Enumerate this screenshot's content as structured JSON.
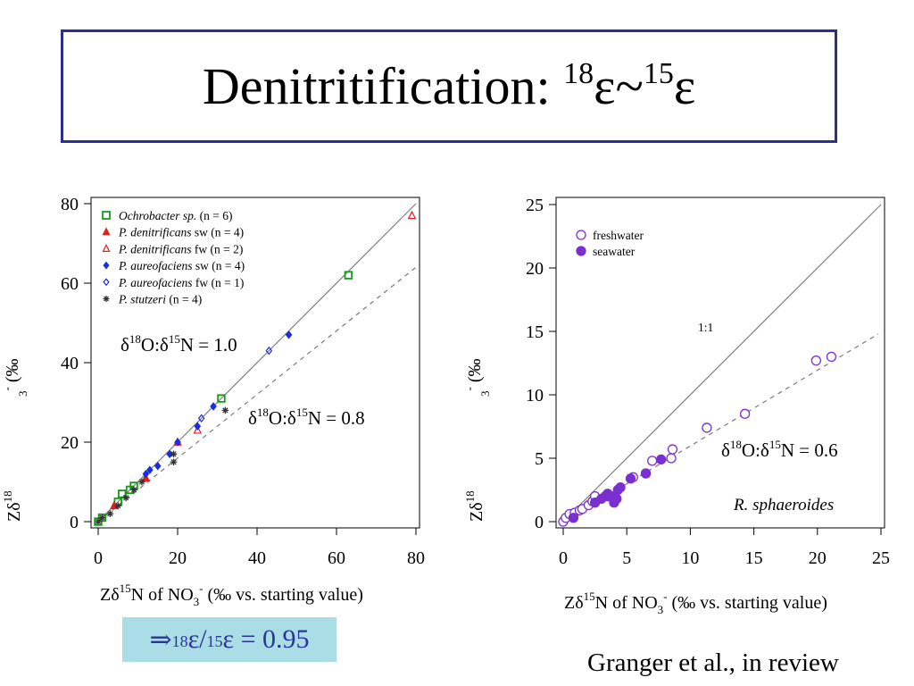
{
  "slide": {
    "title_prefix": "Denitritification: ",
    "title_sup1": "18",
    "title_eps1": "ε~",
    "title_sup2": "15",
    "title_eps2": "ε",
    "result_arrow": "⇒ ",
    "result_sup1": "18",
    "result_mid": "ε/",
    "result_sup2": "15",
    "result_end": "ε = 0.95",
    "credit": "Granger et al., in review"
  },
  "chart_data": [
    {
      "type": "scatter",
      "xlim": [
        0,
        80
      ],
      "ylim": [
        0,
        80
      ],
      "xticks": [
        0,
        20,
        40,
        60,
        80
      ],
      "yticks": [
        0,
        20,
        40,
        60,
        80
      ],
      "xlabel": {
        "a": "Zδ",
        "sup": "15",
        "b": "N of NO",
        "sub": "3",
        "sup2": "-",
        "c": " (‰ vs. starting value)"
      },
      "ylabel_fragment": "Zδ¹⁸ ... ₃⁻ (‰",
      "legend_position": "top-left",
      "lines": [
        {
          "label": "1:1",
          "slope": 1.0,
          "style": "solid"
        },
        {
          "label": "0.8",
          "slope": 0.8,
          "style": "dashed"
        }
      ],
      "annotations": [
        {
          "text": "δ18O:δ15N = 1.0"
        },
        {
          "text": "δ18O:δ15N = 0.8"
        }
      ],
      "series": [
        {
          "name": "Ochrobacter sp.",
          "legend_suffix": "(n = 6)",
          "marker": "open-square",
          "color": "#1a9a1a",
          "points": [
            [
              0,
              0
            ],
            [
              1,
              1
            ],
            [
              5,
              5
            ],
            [
              6,
              7
            ],
            [
              8,
              8
            ],
            [
              9,
              9
            ],
            [
              31,
              31
            ],
            [
              63,
              62
            ]
          ]
        },
        {
          "name": "P. denitrificans",
          "legend_suffix": "sw (n = 4)",
          "marker": "filled-triangle",
          "color": "#e02020",
          "points": [
            [
              4,
              4
            ],
            [
              12,
              11
            ],
            [
              20,
              20
            ]
          ]
        },
        {
          "name": "P. denitrificans",
          "legend_suffix": "fw (n = 2)",
          "marker": "open-triangle",
          "color": "#e02020",
          "points": [
            [
              25,
              23
            ],
            [
              79,
              77
            ]
          ]
        },
        {
          "name": "P. aureofaciens",
          "legend_suffix": "sw (n = 4)",
          "marker": "filled-diamond",
          "color": "#1a2ee0",
          "points": [
            [
              12,
              12
            ],
            [
              13,
              13
            ],
            [
              15,
              14
            ],
            [
              18,
              17
            ],
            [
              20,
              20
            ],
            [
              25,
              24
            ],
            [
              29,
              29
            ],
            [
              48,
              47
            ]
          ]
        },
        {
          "name": "P. aureofaciens",
          "legend_suffix": "fw (n = 1)",
          "marker": "open-diamond",
          "color": "#1a2ee0",
          "points": [
            [
              26,
              26
            ],
            [
              43,
              43
            ]
          ]
        },
        {
          "name": "P. stutzeri",
          "legend_suffix": "(n = 4)",
          "marker": "asterisk",
          "color": "#333333",
          "points": [
            [
              0,
              0
            ],
            [
              1,
              1
            ],
            [
              3,
              2
            ],
            [
              5,
              4
            ],
            [
              7,
              6
            ],
            [
              9,
              8
            ],
            [
              11,
              10
            ],
            [
              19,
              15
            ],
            [
              19,
              17
            ],
            [
              32,
              28
            ]
          ]
        }
      ]
    },
    {
      "type": "scatter",
      "xlim": [
        0,
        25
      ],
      "ylim": [
        0,
        25
      ],
      "xticks": [
        0,
        5,
        10,
        15,
        20,
        25
      ],
      "yticks": [
        0,
        5,
        10,
        15,
        20,
        25
      ],
      "xlabel": {
        "a": "Zδ",
        "sup": "15",
        "b": "N of NO",
        "sub": "3",
        "sup2": "-",
        "c": " (‰ vs. starting value)"
      },
      "ylabel_fragment": "Zδ¹⁸ ... ₃⁻ (‰",
      "legend_position": "top-left",
      "lines": [
        {
          "label": "1:1",
          "slope": 1.0,
          "style": "solid"
        },
        {
          "label": "0.6",
          "slope": 0.6,
          "style": "dashed"
        }
      ],
      "annotations": [
        {
          "text": "1:1"
        },
        {
          "text": "δ18O:δ15N = 0.6"
        },
        {
          "text": "R. sphaeroides"
        }
      ],
      "series": [
        {
          "name": "freshwater",
          "marker": "open-circle",
          "color": "#7b2fd0",
          "points": [
            [
              0,
              0
            ],
            [
              0.2,
              0.3
            ],
            [
              0.5,
              0.6
            ],
            [
              0.9,
              0.7
            ],
            [
              1.3,
              0.9
            ],
            [
              1.5,
              1.0
            ],
            [
              2.0,
              1.3
            ],
            [
              2.3,
              1.6
            ],
            [
              2.5,
              2.0
            ],
            [
              3.5,
              2.0
            ],
            [
              5.5,
              3.5
            ],
            [
              6.5,
              3.8
            ],
            [
              7.0,
              4.8
            ],
            [
              8.5,
              5.0
            ],
            [
              8.6,
              5.7
            ],
            [
              11.3,
              7.4
            ],
            [
              14.3,
              8.5
            ],
            [
              19.9,
              12.7
            ],
            [
              21.1,
              13.0
            ]
          ]
        },
        {
          "name": "seawater",
          "marker": "filled-circle",
          "color": "#7b2fd0",
          "points": [
            [
              0.8,
              0.3
            ],
            [
              2.5,
              1.5
            ],
            [
              3.0,
              1.8
            ],
            [
              3.3,
              2.0
            ],
            [
              3.5,
              2.2
            ],
            [
              3.8,
              2.0
            ],
            [
              4.0,
              1.5
            ],
            [
              4.0,
              1.9
            ],
            [
              4.2,
              1.8
            ],
            [
              4.3,
              2.5
            ],
            [
              4.5,
              2.7
            ],
            [
              5.3,
              3.4
            ],
            [
              6.5,
              3.8
            ],
            [
              7.7,
              4.9
            ]
          ]
        }
      ]
    }
  ]
}
